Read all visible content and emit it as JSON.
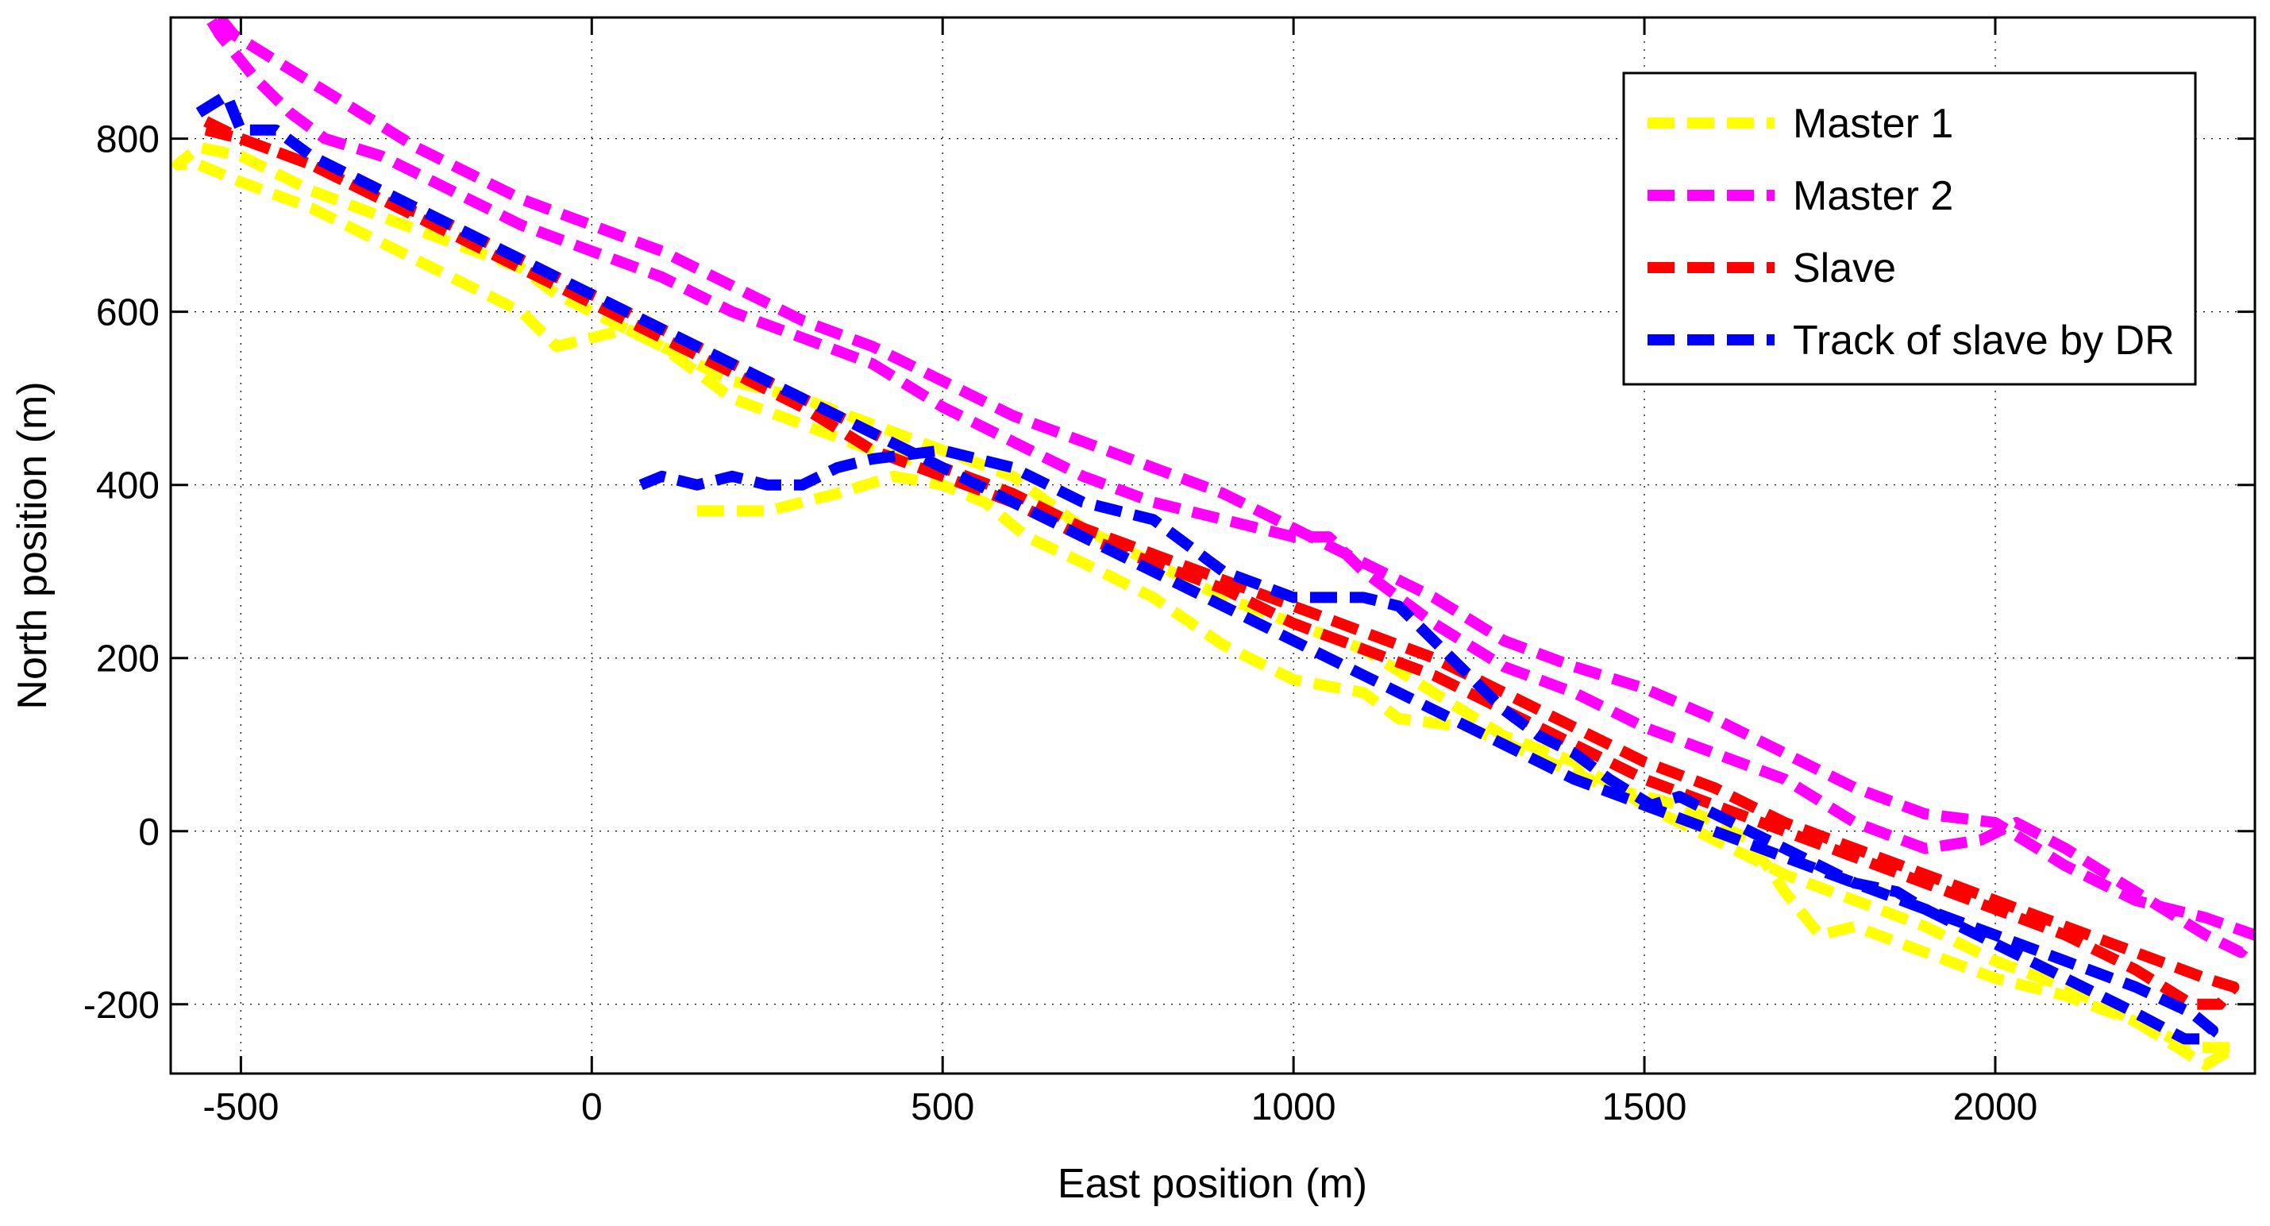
{
  "chart_data": {
    "type": "line",
    "title": "",
    "xlabel": "East position (m)",
    "ylabel": "North position (m)",
    "xlim": [
      -600,
      2370
    ],
    "ylim": [
      -280,
      940
    ],
    "xticks": [
      -500,
      0,
      500,
      1000,
      1500,
      2000
    ],
    "yticks": [
      -200,
      0,
      200,
      400,
      600,
      800
    ],
    "xtick_labels": [
      "-500",
      "0",
      "500",
      "1000",
      "1500",
      "2000"
    ],
    "ytick_labels": [
      "-200",
      "0",
      "200",
      "400",
      "600",
      "800"
    ],
    "grid": true,
    "legend_position": "top-right",
    "series": [
      {
        "name": "Master 1",
        "color": "#ffff00",
        "style": "dashed",
        "points": [
          [
            150,
            370
          ],
          [
            250,
            370
          ],
          [
            350,
            390
          ],
          [
            430,
            410
          ],
          [
            500,
            400
          ],
          [
            560,
            380
          ],
          [
            620,
            340
          ],
          [
            700,
            310
          ],
          [
            800,
            270
          ],
          [
            900,
            215
          ],
          [
            1000,
            175
          ],
          [
            1100,
            160
          ],
          [
            1150,
            130
          ],
          [
            1250,
            120
          ],
          [
            1350,
            85
          ],
          [
            1450,
            50
          ],
          [
            1550,
            30
          ],
          [
            1650,
            -10
          ],
          [
            1700,
            -70
          ],
          [
            1750,
            -120
          ],
          [
            1800,
            -110
          ],
          [
            1900,
            -140
          ],
          [
            2000,
            -170
          ],
          [
            2100,
            -190
          ],
          [
            2200,
            -220
          ],
          [
            2280,
            -250
          ],
          [
            2340,
            -250
          ],
          [
            2300,
            -270
          ],
          [
            2200,
            -220
          ],
          [
            2100,
            -180
          ],
          [
            2000,
            -150
          ],
          [
            1900,
            -110
          ],
          [
            1800,
            -80
          ],
          [
            1700,
            -50
          ],
          [
            1600,
            -10
          ],
          [
            1500,
            30
          ],
          [
            1400,
            80
          ],
          [
            1300,
            110
          ],
          [
            1200,
            160
          ],
          [
            1100,
            210
          ],
          [
            1000,
            240
          ],
          [
            900,
            270
          ],
          [
            800,
            310
          ],
          [
            700,
            350
          ],
          [
            600,
            410
          ],
          [
            500,
            440
          ],
          [
            400,
            470
          ],
          [
            300,
            500
          ],
          [
            200,
            520
          ],
          [
            150,
            540
          ],
          [
            100,
            560
          ],
          [
            50,
            580
          ],
          [
            0,
            570
          ],
          [
            -50,
            560
          ],
          [
            -100,
            600
          ],
          [
            -200,
            640
          ],
          [
            -300,
            680
          ],
          [
            -400,
            720
          ],
          [
            -500,
            750
          ],
          [
            -560,
            770
          ],
          [
            -590,
            770
          ],
          [
            -560,
            790
          ],
          [
            -500,
            780
          ],
          [
            -450,
            760
          ],
          [
            -400,
            740
          ],
          [
            -300,
            710
          ],
          [
            -200,
            680
          ],
          [
            -100,
            650
          ],
          [
            -50,
            620
          ],
          [
            0,
            600
          ],
          [
            100,
            560
          ],
          [
            150,
            530
          ],
          [
            200,
            500
          ],
          [
            300,
            470
          ],
          [
            400,
            440
          ],
          [
            500,
            420
          ],
          [
            600,
            390
          ]
        ]
      },
      {
        "name": "Master 2",
        "color": "#ff00ff",
        "style": "dashed",
        "points": [
          [
            -530,
            940
          ],
          [
            -510,
            920
          ],
          [
            -450,
            890
          ],
          [
            -350,
            840
          ],
          [
            -250,
            790
          ],
          [
            -200,
            770
          ],
          [
            -100,
            730
          ],
          [
            0,
            700
          ],
          [
            100,
            670
          ],
          [
            200,
            630
          ],
          [
            300,
            590
          ],
          [
            400,
            560
          ],
          [
            500,
            520
          ],
          [
            600,
            480
          ],
          [
            700,
            450
          ],
          [
            800,
            420
          ],
          [
            900,
            390
          ],
          [
            1000,
            350
          ],
          [
            1100,
            310
          ],
          [
            1200,
            270
          ],
          [
            1300,
            220
          ],
          [
            1400,
            190
          ],
          [
            1500,
            165
          ],
          [
            1600,
            130
          ],
          [
            1700,
            90
          ],
          [
            1800,
            50
          ],
          [
            1900,
            20
          ],
          [
            2000,
            10
          ],
          [
            2100,
            -40
          ],
          [
            2200,
            -80
          ],
          [
            2300,
            -100
          ],
          [
            2370,
            -120
          ],
          [
            2350,
            -140
          ],
          [
            2300,
            -120
          ],
          [
            2200,
            -70
          ],
          [
            2100,
            -20
          ],
          [
            2030,
            10
          ],
          [
            1980,
            -10
          ],
          [
            1900,
            -20
          ],
          [
            1800,
            10
          ],
          [
            1700,
            60
          ],
          [
            1600,
            90
          ],
          [
            1500,
            120
          ],
          [
            1400,
            160
          ],
          [
            1300,
            190
          ],
          [
            1200,
            240
          ],
          [
            1100,
            300
          ],
          [
            1050,
            340
          ],
          [
            1000,
            340
          ],
          [
            900,
            360
          ],
          [
            800,
            380
          ],
          [
            700,
            410
          ],
          [
            600,
            450
          ],
          [
            500,
            490
          ],
          [
            400,
            540
          ],
          [
            300,
            570
          ],
          [
            200,
            600
          ],
          [
            100,
            640
          ],
          [
            0,
            670
          ],
          [
            -100,
            700
          ],
          [
            -200,
            740
          ],
          [
            -300,
            780
          ],
          [
            -380,
            800
          ],
          [
            -430,
            830
          ],
          [
            -480,
            870
          ],
          [
            -530,
            920
          ],
          [
            -560,
            960
          ]
        ]
      },
      {
        "name": "Slave",
        "color": "#ff0000",
        "style": "dashed",
        "points": [
          [
            -550,
            810
          ],
          [
            -500,
            800
          ],
          [
            -400,
            770
          ],
          [
            -300,
            730
          ],
          [
            -200,
            700
          ],
          [
            -100,
            660
          ],
          [
            0,
            620
          ],
          [
            100,
            580
          ],
          [
            200,
            540
          ],
          [
            300,
            500
          ],
          [
            400,
            460
          ],
          [
            500,
            420
          ],
          [
            600,
            390
          ],
          [
            700,
            350
          ],
          [
            800,
            320
          ],
          [
            900,
            290
          ],
          [
            1000,
            260
          ],
          [
            1100,
            230
          ],
          [
            1200,
            200
          ],
          [
            1300,
            160
          ],
          [
            1400,
            120
          ],
          [
            1500,
            80
          ],
          [
            1600,
            50
          ],
          [
            1700,
            10
          ],
          [
            1800,
            -20
          ],
          [
            1900,
            -50
          ],
          [
            2000,
            -80
          ],
          [
            2100,
            -110
          ],
          [
            2200,
            -140
          ],
          [
            2300,
            -170
          ],
          [
            2340,
            -180
          ],
          [
            2320,
            -200
          ],
          [
            2280,
            -200
          ],
          [
            2200,
            -160
          ],
          [
            2100,
            -120
          ],
          [
            2000,
            -90
          ],
          [
            1900,
            -60
          ],
          [
            1800,
            -30
          ],
          [
            1700,
            0
          ],
          [
            1600,
            30
          ],
          [
            1500,
            60
          ],
          [
            1400,
            100
          ],
          [
            1300,
            140
          ],
          [
            1200,
            180
          ],
          [
            1100,
            210
          ],
          [
            1000,
            240
          ],
          [
            900,
            280
          ],
          [
            800,
            310
          ],
          [
            700,
            340
          ],
          [
            600,
            380
          ],
          [
            500,
            410
          ],
          [
            400,
            440
          ],
          [
            300,
            490
          ],
          [
            200,
            530
          ],
          [
            100,
            570
          ],
          [
            0,
            610
          ],
          [
            -100,
            650
          ],
          [
            -200,
            690
          ],
          [
            -300,
            730
          ],
          [
            -400,
            770
          ],
          [
            -500,
            800
          ],
          [
            -550,
            820
          ]
        ]
      },
      {
        "name": "Track of slave by DR",
        "color": "#0000ff",
        "style": "dashed",
        "points": [
          [
            -560,
            830
          ],
          [
            -520,
            850
          ],
          [
            -500,
            810
          ],
          [
            -450,
            810
          ],
          [
            -400,
            780
          ],
          [
            -300,
            740
          ],
          [
            -200,
            700
          ],
          [
            -100,
            660
          ],
          [
            0,
            620
          ],
          [
            100,
            580
          ],
          [
            200,
            540
          ],
          [
            300,
            500
          ],
          [
            400,
            460
          ],
          [
            500,
            420
          ],
          [
            600,
            380
          ],
          [
            700,
            340
          ],
          [
            800,
            300
          ],
          [
            900,
            260
          ],
          [
            1000,
            220
          ],
          [
            1100,
            180
          ],
          [
            1200,
            140
          ],
          [
            1300,
            100
          ],
          [
            1400,
            60
          ],
          [
            1500,
            30
          ],
          [
            1600,
            0
          ],
          [
            1700,
            -30
          ],
          [
            1800,
            -60
          ],
          [
            1900,
            -90
          ],
          [
            2000,
            -120
          ],
          [
            2100,
            -150
          ],
          [
            2200,
            -180
          ],
          [
            2280,
            -210
          ],
          [
            2310,
            -230
          ],
          [
            2300,
            -240
          ],
          [
            2270,
            -240
          ],
          [
            2200,
            -210
          ],
          [
            2100,
            -170
          ],
          [
            2000,
            -130
          ],
          [
            1900,
            -90
          ],
          [
            1860,
            -70
          ],
          [
            1800,
            -60
          ],
          [
            1700,
            -20
          ],
          [
            1600,
            20
          ],
          [
            1550,
            40
          ],
          [
            1510,
            30
          ],
          [
            1450,
            60
          ],
          [
            1400,
            90
          ],
          [
            1350,
            110
          ],
          [
            1300,
            140
          ],
          [
            1250,
            180
          ],
          [
            1200,
            220
          ],
          [
            1150,
            260
          ],
          [
            1100,
            270
          ],
          [
            1000,
            270
          ],
          [
            900,
            300
          ],
          [
            850,
            330
          ],
          [
            800,
            360
          ],
          [
            700,
            380
          ],
          [
            600,
            420
          ],
          [
            500,
            440
          ],
          [
            400,
            430
          ],
          [
            350,
            420
          ],
          [
            300,
            400
          ],
          [
            250,
            400
          ],
          [
            200,
            410
          ],
          [
            150,
            400
          ],
          [
            100,
            410
          ],
          [
            70,
            400
          ]
        ]
      }
    ]
  }
}
